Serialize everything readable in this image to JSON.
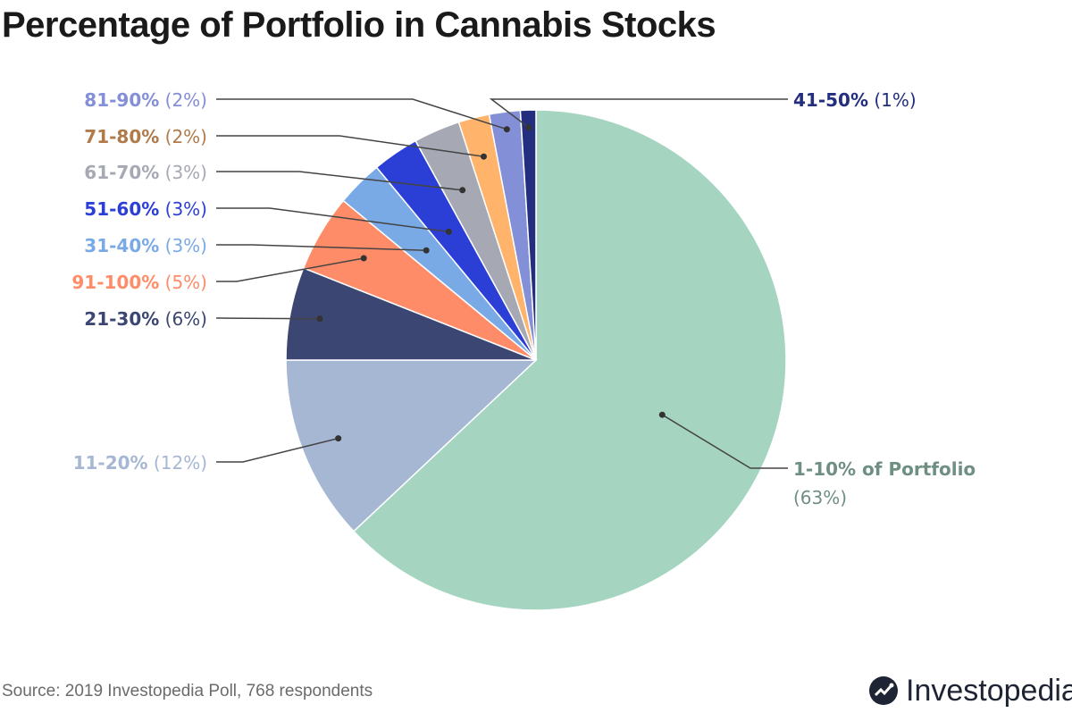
{
  "chart_data": {
    "type": "pie",
    "title": "Percentage of Portfolio in Cannabis Stocks",
    "slices": [
      {
        "label": "1-10% of Portfolio",
        "pct_text": "(63%)",
        "value": 63,
        "color": "#a5d4c1",
        "text_color": "#6f8f83"
      },
      {
        "label": "11-20%",
        "pct_text": "(12%)",
        "value": 12,
        "color": "#a6b7d4",
        "text_color": "#a6b7d4"
      },
      {
        "label": "21-30%",
        "pct_text": "(6%)",
        "value": 6,
        "color": "#3b4673",
        "text_color": "#3b4673"
      },
      {
        "label": "91-100%",
        "pct_text": "(5%)",
        "value": 5,
        "color": "#ff8c69",
        "text_color": "#ff8c69"
      },
      {
        "label": "31-40%",
        "pct_text": "(3%)",
        "value": 3,
        "color": "#7aaae6",
        "text_color": "#7aaae6"
      },
      {
        "label": "51-60%",
        "pct_text": "(3%)",
        "value": 3,
        "color": "#2b3fd6",
        "text_color": "#2b3fd6"
      },
      {
        "label": "61-70%",
        "pct_text": "(3%)",
        "value": 3,
        "color": "#a6a8b4",
        "text_color": "#a6a8b4"
      },
      {
        "label": "71-80%",
        "pct_text": "(2%)",
        "value": 2,
        "color": "#ffb36b",
        "text_color": "#b07a4a"
      },
      {
        "label": "81-90%",
        "pct_text": "(2%)",
        "value": 2,
        "color": "#838fd6",
        "text_color": "#838fd6"
      },
      {
        "label": "41-50%",
        "pct_text": "(1%)",
        "value": 1,
        "color": "#232f7e",
        "text_color": "#232f7e"
      }
    ]
  },
  "source": "Source: 2019 Investopedia Poll, 768 respondents",
  "logo": {
    "name": "Investopedia",
    "icon": "investopedia-logo-icon"
  }
}
